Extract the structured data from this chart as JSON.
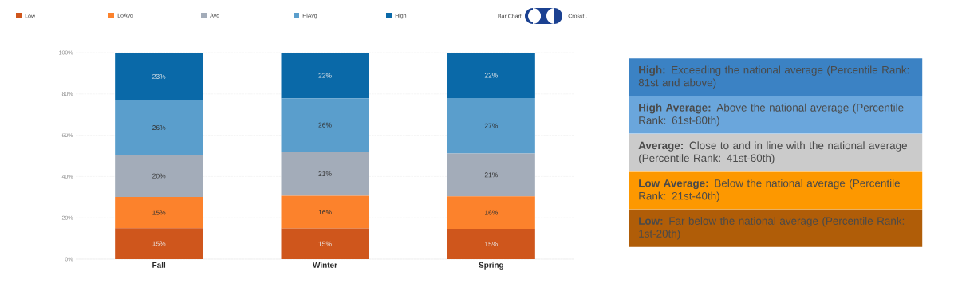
{
  "chart_data": [
    {
      "type": "bar",
      "stacked": true,
      "categories": [
        "Fall",
        "Winter",
        "Spring"
      ],
      "series": [
        {
          "name": "Low",
          "color": "#cf561c",
          "values": [
            15.0,
            14.9,
            14.7
          ],
          "value_labels": [
            "15%",
            "15%",
            "15%"
          ]
        },
        {
          "name": "LoAvg",
          "color": "#fc822c",
          "values": [
            15.1,
            15.8,
            15.7
          ],
          "value_labels": [
            "15%",
            "16%",
            "16%"
          ]
        },
        {
          "name": "Avg",
          "color": "#a3acb9",
          "values": [
            20.4,
            21.4,
            20.8
          ],
          "value_labels": [
            "20%",
            "21%",
            "21%"
          ]
        },
        {
          "name": "HiAvg",
          "color": "#5a9ecc",
          "values": [
            26.4,
            25.8,
            26.8
          ],
          "value_labels": [
            "26%",
            "26%",
            "27%"
          ]
        },
        {
          "name": "High",
          "color": "#0a69a8",
          "values": [
            23.1,
            22.1,
            22.0
          ],
          "value_labels": [
            "23%",
            "22%",
            "22%"
          ]
        }
      ],
      "ylim": [
        0,
        100
      ],
      "yticks": [
        {
          "value": 0,
          "label": "0%"
        },
        {
          "value": 20,
          "label": "20%"
        },
        {
          "value": 40,
          "label": "40%"
        },
        {
          "value": 60,
          "label": "60%"
        },
        {
          "value": 80,
          "label": "80%"
        },
        {
          "value": 100,
          "label": "100%"
        }
      ],
      "grid": "y",
      "legend": "top",
      "annotations": [
        "Bar Chart",
        "Crosst.."
      ]
    },
    {
      "type": "other",
      "annotations": [
        "**High:** Exceeding the national average (Percentile Rank: 81st and above)",
        "**High Average:** Above the national average (Percentile Rank: 61st-80th)",
        "**Average:** Close to and in line with the national average (Percentile Rank: 41st-60th)",
        "**Low Average:** Below the national average (Percentile Rank: 21st-40th)",
        "**Low:** Far below the national average (Percentile Rank: 1st-20th)"
      ],
      "colors": [
        "#3b82c4",
        "#6aa6dc",
        "#cbcbcb",
        "#fd9800",
        "#b05d08"
      ]
    }
  ]
}
